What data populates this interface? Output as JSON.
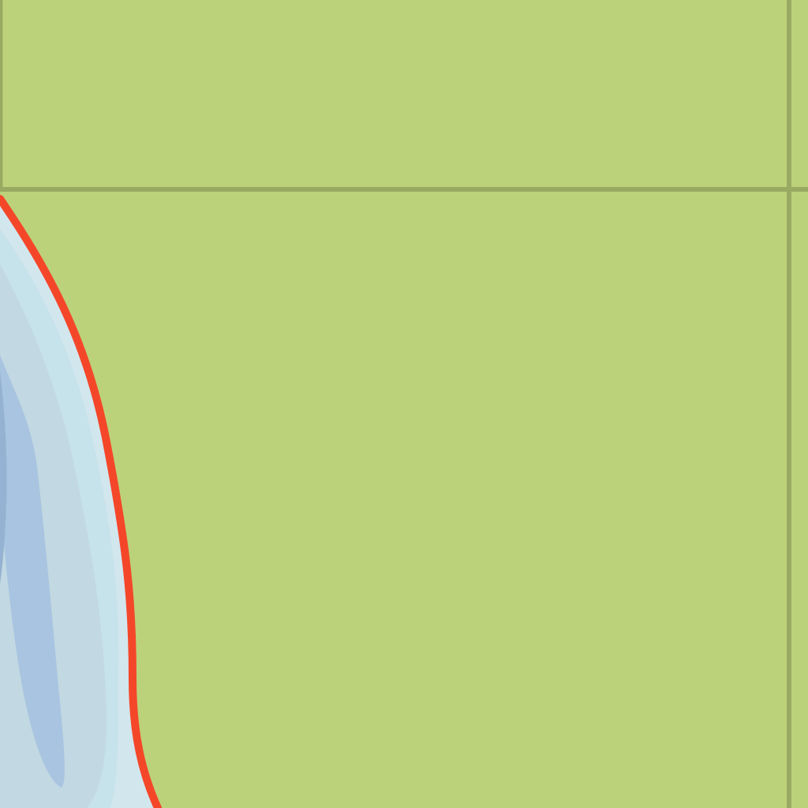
{
  "map": {
    "colors": {
      "land": "#bcd27a",
      "grid_line": "#98aa62",
      "water_shallow": "#d2e6ee",
      "water_light": "#c6e2ea",
      "water_mid": "#c2d8e2",
      "water_deep": "#a8c4e0",
      "water_deepest": "#96b2d2",
      "coastline": "#f4472a"
    },
    "layers": [
      "land",
      "grid-lines",
      "water-body",
      "depth-contours",
      "coastline"
    ]
  }
}
